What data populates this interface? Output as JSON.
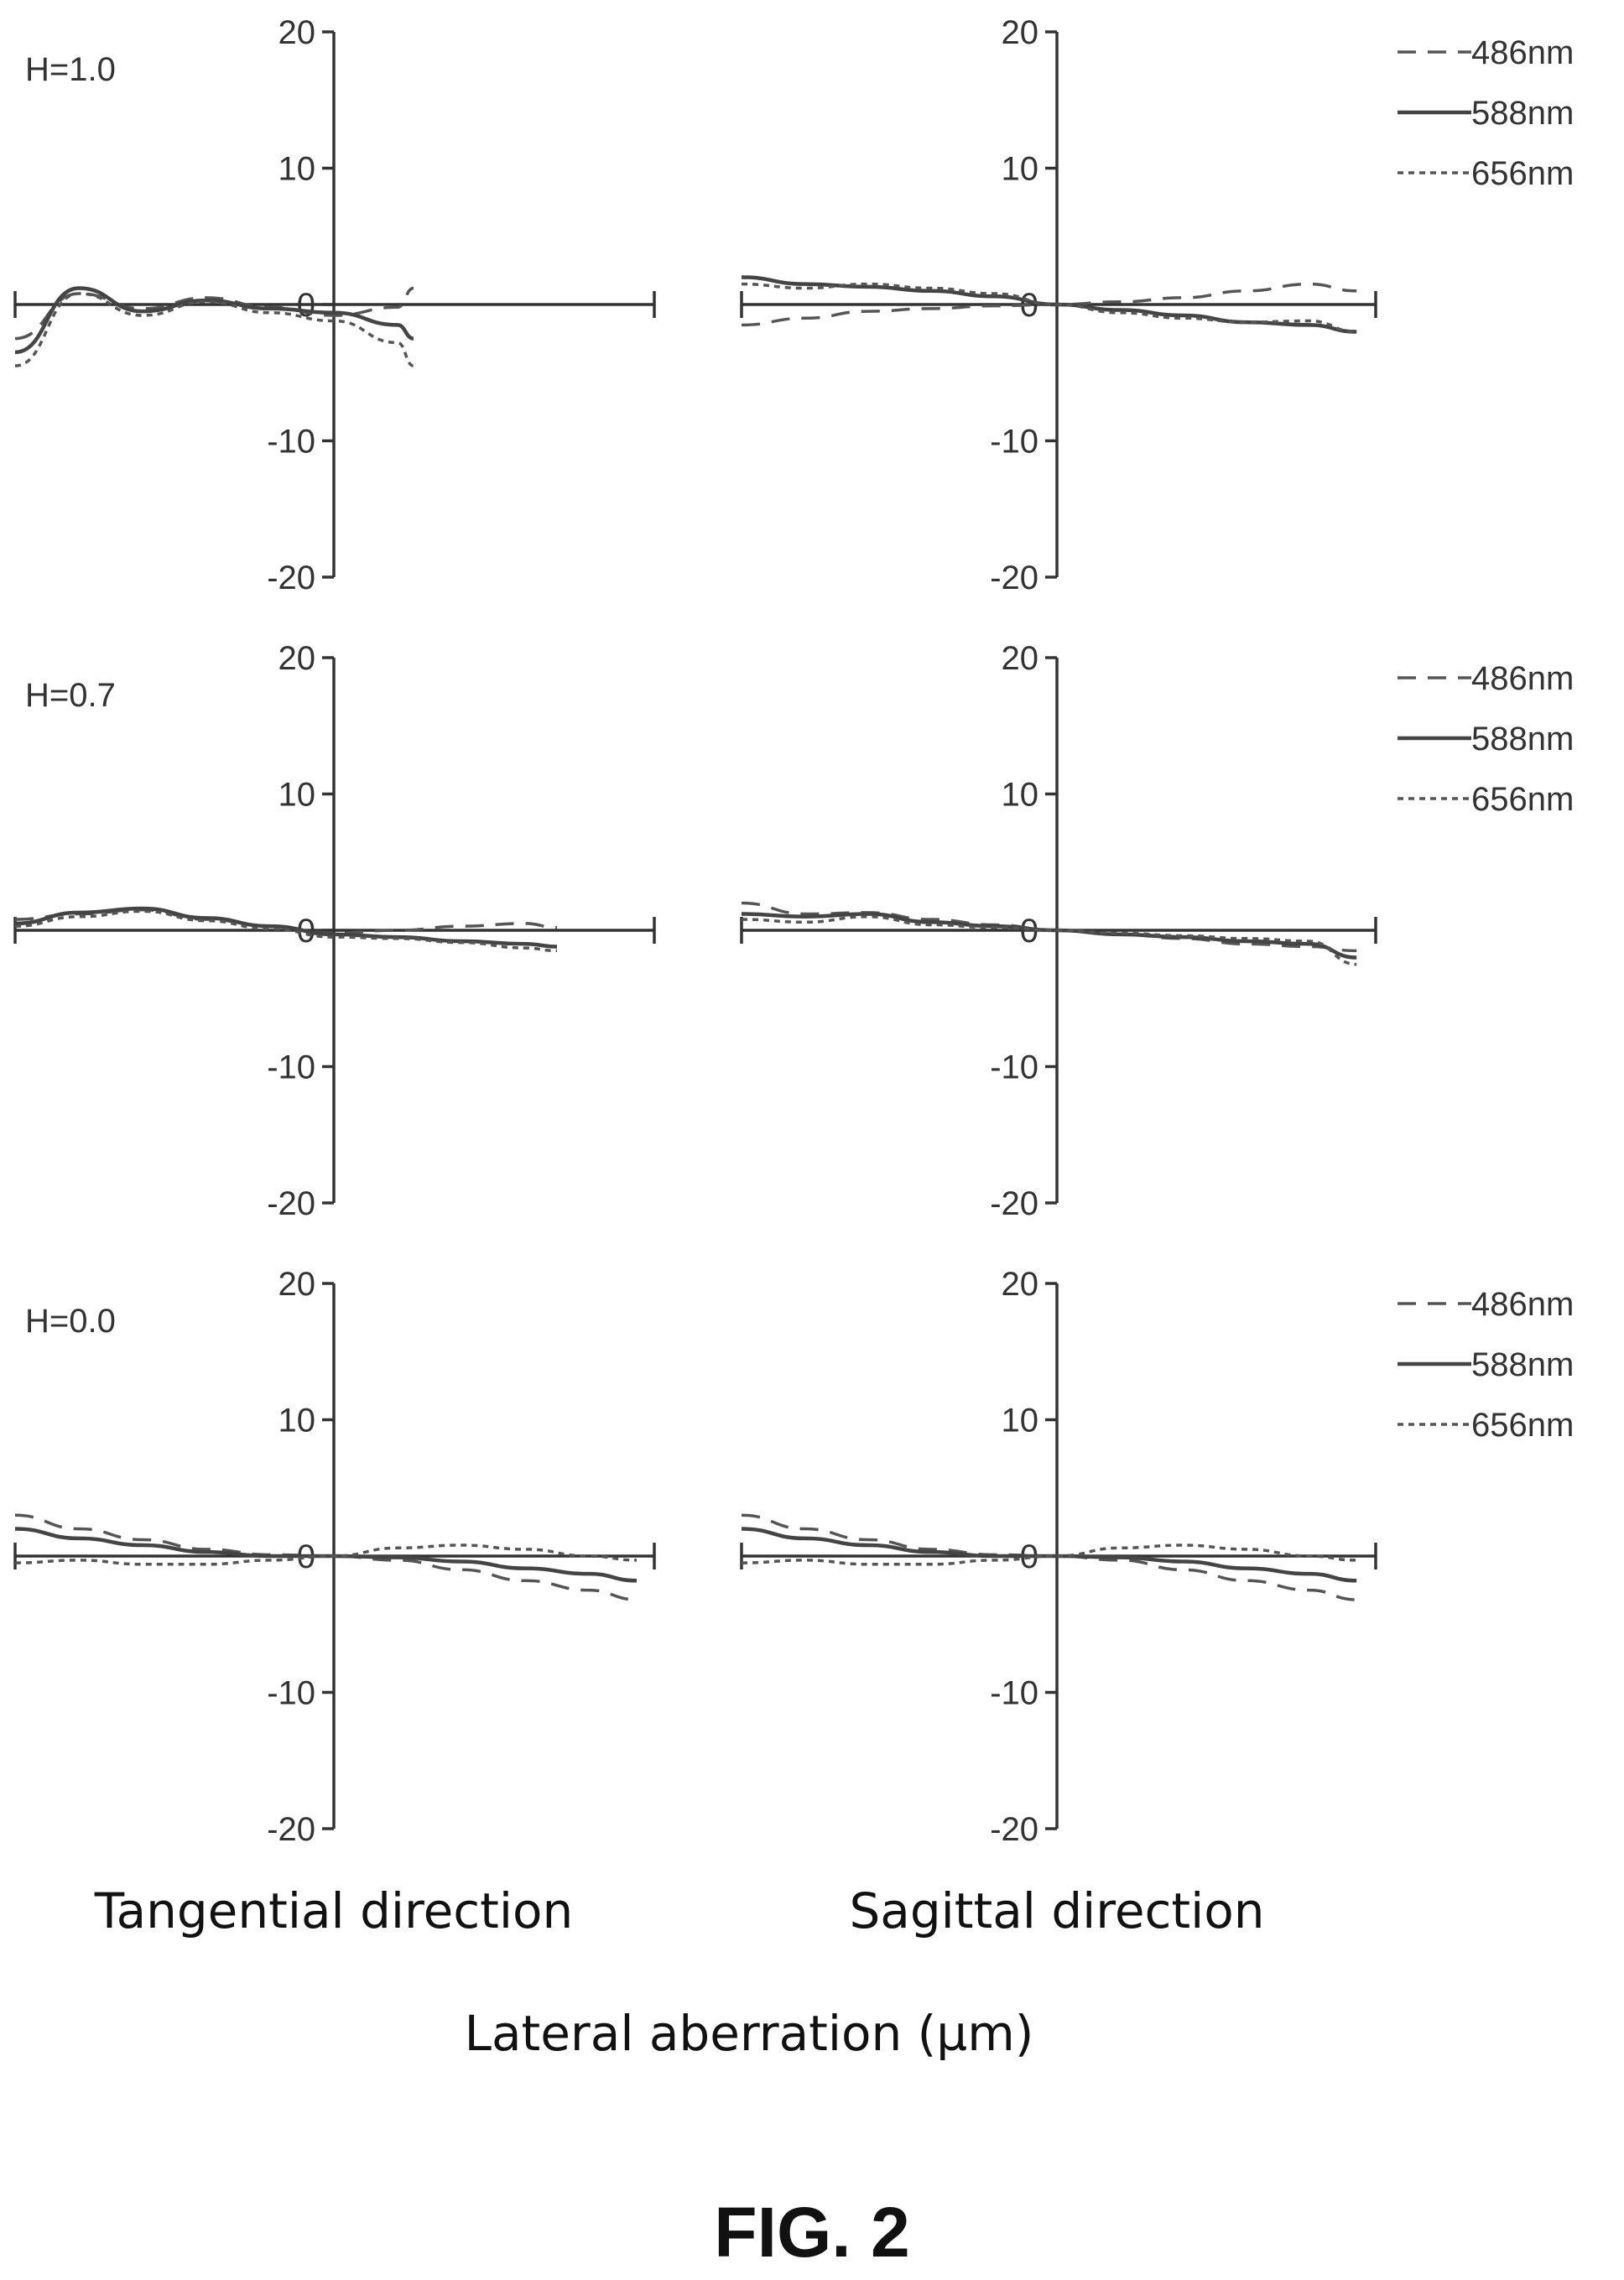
{
  "figure_label": "FIG. 2",
  "xlabel": "Lateral aberration (µm)",
  "column_titles": [
    "Tangential direction",
    "Sagittal direction"
  ],
  "legend": [
    {
      "label": "486nm",
      "dash": "22,14"
    },
    {
      "label": "588nm",
      "dash": ""
    },
    {
      "label": "656nm",
      "dash": "7,6"
    }
  ],
  "chart_data": [
    {
      "type": "line",
      "field": "H=1.0",
      "direction": "Tangential direction",
      "x": [
        -1.0,
        -0.8,
        -0.6,
        -0.4,
        -0.2,
        0.0,
        0.2,
        0.25
      ],
      "ylim": [
        -20,
        20
      ],
      "yticks": [
        20,
        10,
        0,
        -10,
        -20
      ],
      "series": [
        {
          "name": "486nm",
          "values": [
            -2.5,
            0.8,
            -0.3,
            0.5,
            -0.2,
            -0.8,
            -0.2,
            1.2
          ]
        },
        {
          "name": "588nm",
          "values": [
            -3.5,
            1.2,
            -0.5,
            0.3,
            -0.3,
            -0.6,
            -1.5,
            -2.5
          ]
        },
        {
          "name": "656nm",
          "values": [
            -4.5,
            0.8,
            -0.8,
            0.2,
            -0.6,
            -1.2,
            -2.8,
            -4.5
          ]
        }
      ]
    },
    {
      "type": "line",
      "field": "H=1.0",
      "direction": "Sagittal direction",
      "x": [
        -1.0,
        -0.8,
        -0.6,
        -0.4,
        -0.2,
        0.0,
        0.2,
        0.4,
        0.6,
        0.8,
        0.95
      ],
      "ylim": [
        -20,
        20
      ],
      "yticks": [
        20,
        10,
        0,
        -10,
        -20
      ],
      "series": [
        {
          "name": "486nm",
          "values": [
            -1.5,
            -1.0,
            -0.5,
            -0.3,
            -0.1,
            0.0,
            0.2,
            0.5,
            1.0,
            1.5,
            1.0
          ]
        },
        {
          "name": "588nm",
          "values": [
            2.0,
            1.5,
            1.3,
            1.0,
            0.6,
            0.0,
            -0.4,
            -0.8,
            -1.3,
            -1.5,
            -2.0
          ]
        },
        {
          "name": "656nm",
          "values": [
            1.5,
            1.2,
            1.5,
            1.2,
            0.8,
            0.0,
            -0.6,
            -1.0,
            -1.3,
            -1.2,
            -2.0
          ]
        }
      ]
    },
    {
      "type": "line",
      "field": "H=0.7",
      "direction": "Tangential direction",
      "x": [
        -1.0,
        -0.8,
        -0.6,
        -0.4,
        -0.2,
        0.0,
        0.2,
        0.4,
        0.6,
        0.7
      ],
      "ylim": [
        -20,
        20
      ],
      "yticks": [
        20,
        10,
        0,
        -10,
        -20
      ],
      "series": [
        {
          "name": "486nm",
          "values": [
            0.8,
            1.2,
            1.5,
            0.8,
            0.3,
            -0.2,
            0.0,
            0.3,
            0.5,
            0.2
          ]
        },
        {
          "name": "588nm",
          "values": [
            0.5,
            1.3,
            1.6,
            0.9,
            0.3,
            -0.3,
            -0.5,
            -0.8,
            -1.0,
            -1.2
          ]
        },
        {
          "name": "656nm",
          "values": [
            0.3,
            1.0,
            1.4,
            0.7,
            0.1,
            -0.5,
            -0.6,
            -0.9,
            -1.3,
            -1.5
          ]
        }
      ]
    },
    {
      "type": "line",
      "field": "H=0.7",
      "direction": "Sagittal direction",
      "x": [
        -1.0,
        -0.8,
        -0.6,
        -0.4,
        -0.2,
        0.0,
        0.2,
        0.4,
        0.6,
        0.8,
        0.95
      ],
      "ylim": [
        -20,
        20
      ],
      "yticks": [
        20,
        10,
        0,
        -10,
        -20
      ],
      "series": [
        {
          "name": "486nm",
          "values": [
            2.0,
            1.2,
            1.3,
            0.8,
            0.4,
            0.0,
            -0.3,
            -0.6,
            -1.0,
            -1.2,
            -1.5
          ]
        },
        {
          "name": "588nm",
          "values": [
            1.2,
            1.0,
            1.2,
            0.6,
            0.3,
            0.0,
            -0.3,
            -0.5,
            -0.8,
            -1.0,
            -2.0
          ]
        },
        {
          "name": "656nm",
          "values": [
            0.8,
            0.6,
            1.0,
            0.4,
            0.2,
            0.0,
            -0.2,
            -0.4,
            -0.6,
            -0.8,
            -2.5
          ]
        }
      ]
    },
    {
      "type": "line",
      "field": "H=0.0",
      "direction": "Tangential direction",
      "x": [
        -1.0,
        -0.8,
        -0.6,
        -0.4,
        -0.2,
        0.0,
        0.2,
        0.4,
        0.6,
        0.8,
        0.95
      ],
      "ylim": [
        -20,
        20
      ],
      "yticks": [
        20,
        10,
        0,
        -10,
        -20
      ],
      "series": [
        {
          "name": "486nm",
          "values": [
            3.0,
            2.0,
            1.2,
            0.5,
            0.1,
            0.0,
            -0.3,
            -1.0,
            -1.8,
            -2.5,
            -3.2
          ]
        },
        {
          "name": "588nm",
          "values": [
            2.0,
            1.3,
            0.8,
            0.3,
            0.0,
            0.0,
            -0.1,
            -0.4,
            -0.9,
            -1.3,
            -1.8
          ]
        },
        {
          "name": "656nm",
          "values": [
            -0.5,
            -0.3,
            -0.6,
            -0.6,
            -0.3,
            0.0,
            0.6,
            0.8,
            0.5,
            0.0,
            -0.3
          ]
        }
      ]
    },
    {
      "type": "line",
      "field": "H=0.0",
      "direction": "Sagittal direction",
      "x": [
        -1.0,
        -0.8,
        -0.6,
        -0.4,
        -0.2,
        0.0,
        0.2,
        0.4,
        0.6,
        0.8,
        0.95
      ],
      "ylim": [
        -20,
        20
      ],
      "yticks": [
        20,
        10,
        0,
        -10,
        -20
      ],
      "series": [
        {
          "name": "486nm",
          "values": [
            3.0,
            2.0,
            1.2,
            0.5,
            0.1,
            0.0,
            -0.3,
            -1.0,
            -1.8,
            -2.5,
            -3.2
          ]
        },
        {
          "name": "588nm",
          "values": [
            2.0,
            1.3,
            0.8,
            0.3,
            0.0,
            0.0,
            -0.1,
            -0.4,
            -0.9,
            -1.3,
            -1.8
          ]
        },
        {
          "name": "656nm",
          "values": [
            -0.5,
            -0.3,
            -0.6,
            -0.6,
            -0.3,
            0.0,
            0.6,
            0.8,
            0.5,
            0.0,
            -0.3
          ]
        }
      ]
    }
  ]
}
